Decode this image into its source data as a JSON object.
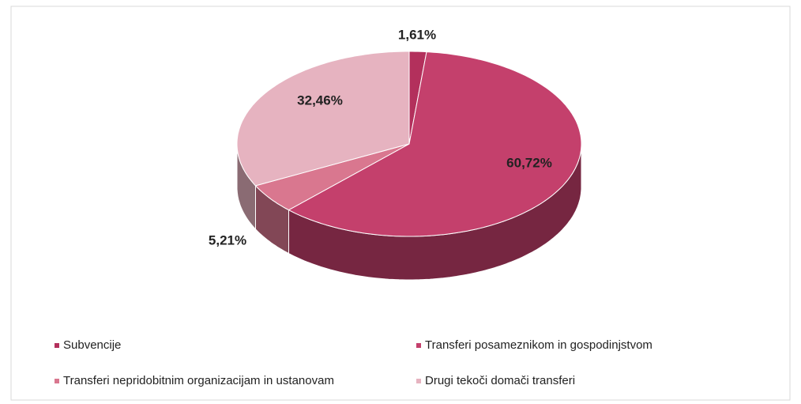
{
  "chart_data": {
    "type": "pie",
    "categories": [
      "Subvencije",
      "Transferi posameznikom in gospodinjstvom",
      "Transferi nepridobitnim organizacijam in ustanovam",
      "Drugi tekoči domači transferi"
    ],
    "values": [
      1.61,
      60.72,
      5.21,
      32.46
    ],
    "value_labels": [
      "1,61%",
      "60,72%",
      "5,21%",
      "32,46%"
    ],
    "colors": [
      "#b3305c",
      "#c4406c",
      "#d9778f",
      "#e6b3c0"
    ],
    "legend": "bottom"
  }
}
